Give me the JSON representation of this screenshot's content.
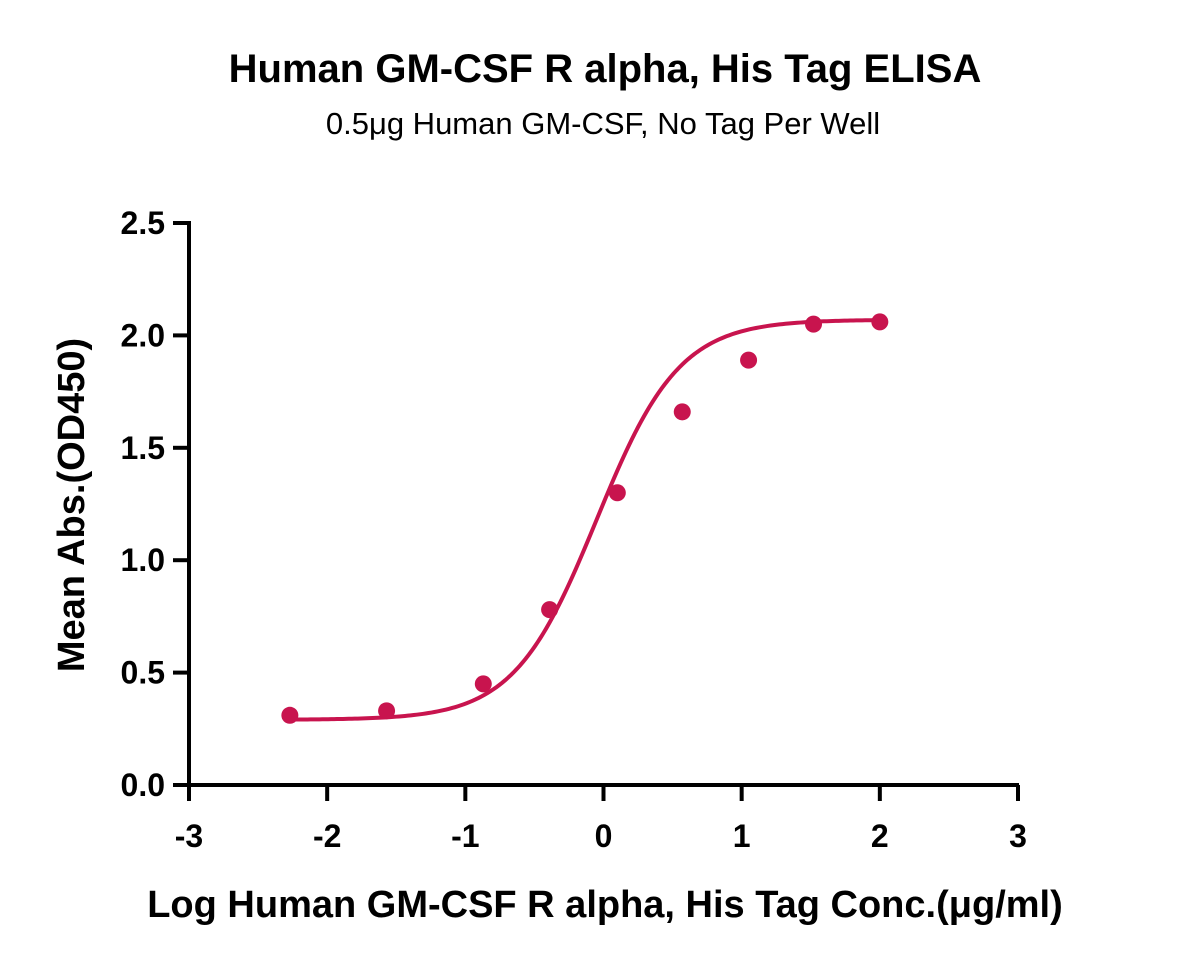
{
  "chart_data": {
    "type": "scatter",
    "title": "Human GM-CSF R alpha, His Tag ELISA",
    "subtitle": "0.5μg Human GM-CSF, No Tag Per Well",
    "xlabel": "Log Human GM-CSF R alpha, His Tag Conc.(μg/ml)",
    "ylabel": "Mean Abs.(OD450)",
    "xlim": [
      -3,
      3
    ],
    "ylim": [
      0,
      2.5
    ],
    "xticks": [
      "-3",
      "-2",
      "-1",
      "0",
      "1",
      "2",
      "3"
    ],
    "yticks": [
      "0.0",
      "0.5",
      "1.0",
      "1.5",
      "2.0",
      "2.5"
    ],
    "grid": false,
    "series": [
      {
        "color": "#c8144e",
        "x": [
          -2.27,
          -1.57,
          -0.87,
          -0.39,
          0.1,
          0.57,
          1.05,
          1.52,
          2.0
        ],
        "y": [
          0.31,
          0.33,
          0.45,
          0.78,
          1.3,
          1.66,
          1.89,
          2.05,
          2.06
        ]
      }
    ],
    "fit_curve": {
      "type": "4PL sigmoid",
      "color": "#c8144e",
      "x_range": [
        -2.27,
        2.0
      ],
      "bottom": 0.29,
      "top": 2.07,
      "ec50_log": -0.05,
      "slope": 1.45
    }
  }
}
